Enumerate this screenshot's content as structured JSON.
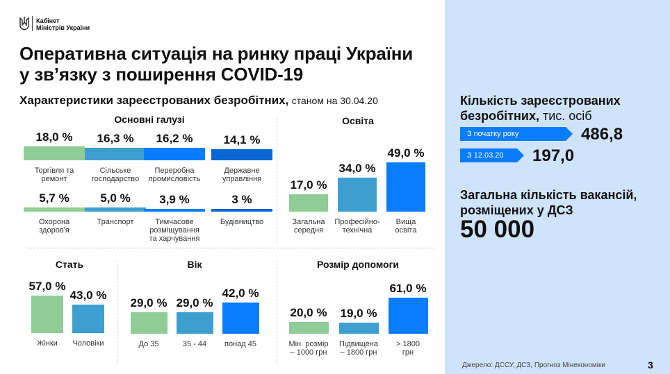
{
  "header": {
    "org_line1": "Кабінет",
    "org_line2": "Міністрів України",
    "title_line1": "Оперативна ситуація на ринку праці України",
    "title_line2": "у зв’язку з поширення COVID-19",
    "subtitle_bold": "Характеристики зареєстрованих безробітних,",
    "subtitle_rest": "станом на 30.04.20"
  },
  "colors": {
    "green": "#8fcc96",
    "teal": "#3d9fd0",
    "blue": "#0a7cff",
    "dark_blue": "#0a66d0",
    "panel": "#cfe4fa"
  },
  "charts": {
    "industries": {
      "title": "Основні галузі",
      "items": [
        {
          "value": "18,0 %",
          "num": 18.0,
          "label": "Торгівля та\nремонт",
          "color": "green"
        },
        {
          "value": "16,3 %",
          "num": 16.3,
          "label": "Сільське\nгосподарство",
          "color": "teal"
        },
        {
          "value": "16,2 %",
          "num": 16.2,
          "label": "Переробна\nпромисловість",
          "color": "blue"
        },
        {
          "value": "14,1 %",
          "num": 14.1,
          "label": "Державне\nуправління",
          "color": "dark_blue"
        },
        {
          "value": "5,7 %",
          "num": 5.7,
          "label": "Охорона\nздоров'я",
          "color": "green"
        },
        {
          "value": "5,0 %",
          "num": 5.0,
          "label": "Транспорт",
          "color": "teal"
        },
        {
          "value": "3,9 %",
          "num": 3.9,
          "label": "Тимчасове\nрозміщування\nта харчування",
          "color": "blue"
        },
        {
          "value": "3 %",
          "num": 3,
          "label": "Будівництво",
          "color": "dark_blue"
        }
      ]
    },
    "education": {
      "title": "Освіта",
      "items": [
        {
          "value": "17,0 %",
          "num": 17,
          "label": "Загальна\nсередня",
          "color": "green"
        },
        {
          "value": "34,0 %",
          "num": 34,
          "label": "Професійно-\nтехнічна",
          "color": "teal"
        },
        {
          "value": "49,0 %",
          "num": 49,
          "label": "Вища\nосвіта",
          "color": "blue"
        }
      ]
    },
    "sex": {
      "title": "Стать",
      "items": [
        {
          "value": "57,0 %",
          "num": 57,
          "label": "Жінки",
          "color": "green"
        },
        {
          "value": "43,0 %",
          "num": 43,
          "label": "Чоловіки",
          "color": "teal"
        }
      ]
    },
    "age": {
      "title": "Вік",
      "items": [
        {
          "value": "29,0 %",
          "num": 29,
          "label": "До 35",
          "color": "green"
        },
        {
          "value": "29,0 %",
          "num": 29,
          "label": "35 - 44",
          "color": "teal"
        },
        {
          "value": "42,0 %",
          "num": 42,
          "label": "понад 45",
          "color": "blue"
        }
      ]
    },
    "benefit": {
      "title": "Розмір допомоги",
      "items": [
        {
          "value": "20,0 %",
          "num": 20,
          "label": "Мін. розмір\n– 1000 грн",
          "color": "green"
        },
        {
          "value": "19,0 %",
          "num": 19,
          "label": "Підвищена\n– 1800 грн",
          "color": "teal"
        },
        {
          "value": "61,0 %",
          "num": 61,
          "label": "> 1800\nгрн",
          "color": "blue"
        }
      ]
    }
  },
  "panel": {
    "unemployed_title": "Кількість зареєстрованих безробітних,",
    "unemployed_unit": "тис. осіб",
    "since_year_label": "З початку року",
    "since_year_value": "486,8",
    "since_date_label": "З 12.03.20",
    "since_date_value": "197,0",
    "vacancies_title": "Загальна кількість вакансій, розміщених у ДСЗ",
    "vacancies_value": "50 000"
  },
  "footer": {
    "source": "Джерело: ДССУ, ДСЗ, Прогноз Мінекономіки",
    "page": "3"
  }
}
